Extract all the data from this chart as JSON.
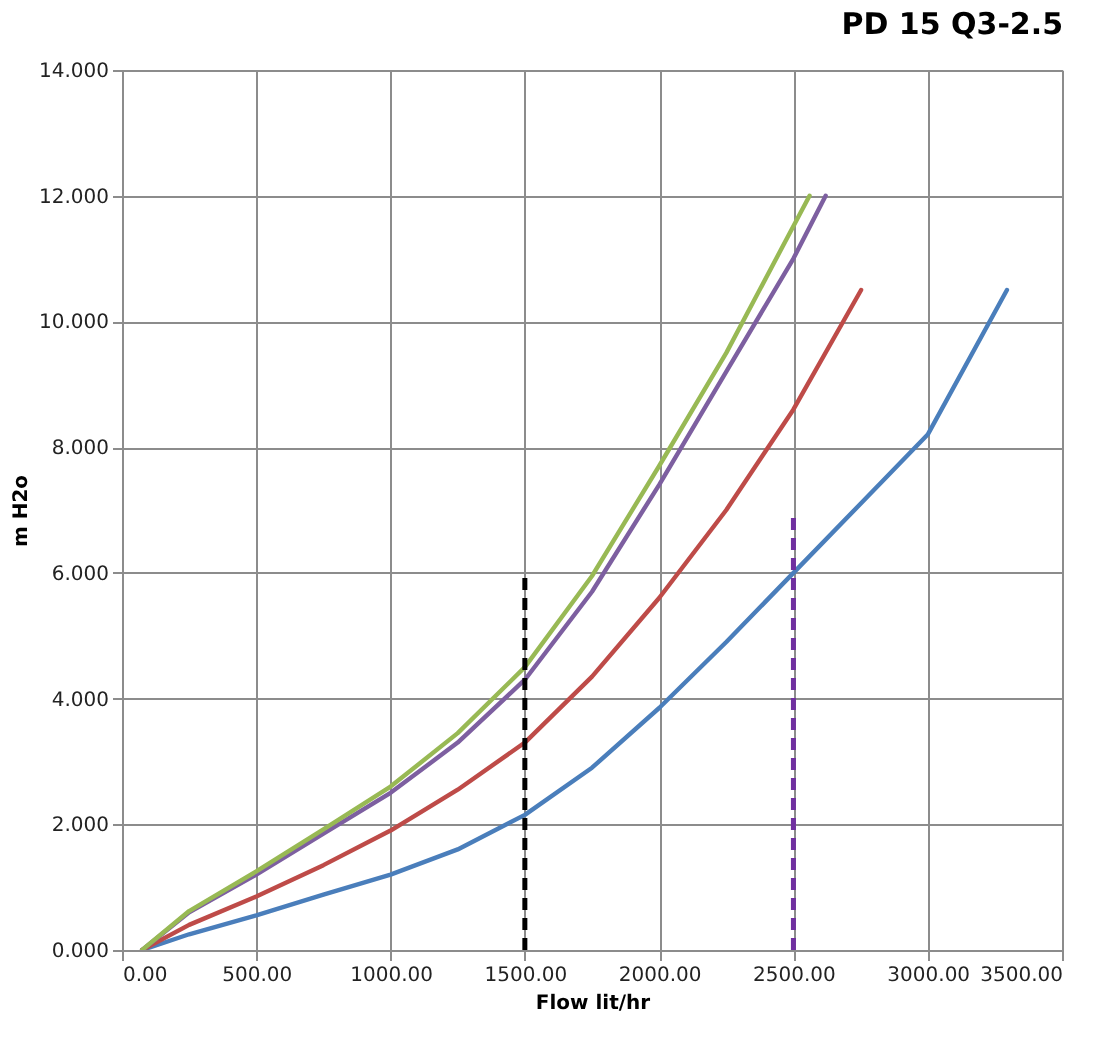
{
  "chart_data": {
    "type": "line",
    "title": "PD 15 Q3-2.5",
    "xlabel": "Flow lit/hr",
    "ylabel": "m H2o",
    "xlim": [
      0,
      3500
    ],
    "ylim": [
      0,
      14
    ],
    "xticks": [
      {
        "value": 0,
        "label": "0.00"
      },
      {
        "value": 500,
        "label": "500.00"
      },
      {
        "value": 1000,
        "label": "1000.00"
      },
      {
        "value": 1500,
        "label": "1500.00"
      },
      {
        "value": 2000,
        "label": "2000.00"
      },
      {
        "value": 2500,
        "label": "2500.00"
      },
      {
        "value": 3000,
        "label": "3000.00"
      },
      {
        "value": 3500,
        "label": "3500.00"
      }
    ],
    "yticks": [
      {
        "value": 0,
        "label": "0.000"
      },
      {
        "value": 2,
        "label": "2.000"
      },
      {
        "value": 4,
        "label": "4.000"
      },
      {
        "value": 6,
        "label": "6.000"
      },
      {
        "value": 8,
        "label": "8.000"
      },
      {
        "value": 10,
        "label": "10.000"
      },
      {
        "value": 12,
        "label": "12.000"
      },
      {
        "value": 14,
        "label": "14.000"
      }
    ],
    "grid": true,
    "marker": "none",
    "series": [
      {
        "color": "#4a7ebb",
        "x": [
          75,
          250,
          500,
          750,
          1000,
          1250,
          1500,
          1750,
          2000,
          2250,
          2500,
          2750,
          3000,
          3295
        ],
        "values": [
          0,
          0.25,
          0.55,
          0.88,
          1.2,
          1.6,
          2.15,
          2.9,
          3.85,
          4.9,
          6.0,
          7.1,
          8.2,
          10.5
        ]
      },
      {
        "color": "#be4b48",
        "x": [
          75,
          250,
          500,
          750,
          1000,
          1250,
          1500,
          1750,
          2000,
          2250,
          2500,
          2752
        ],
        "values": [
          0,
          0.4,
          0.85,
          1.35,
          1.9,
          2.55,
          3.3,
          4.35,
          5.6,
          7.0,
          8.6,
          10.5
        ]
      },
      {
        "color": "#7d5fa0",
        "x": [
          75,
          250,
          500,
          750,
          1000,
          1250,
          1500,
          1750,
          2000,
          2250,
          2500,
          2620
        ],
        "values": [
          0,
          0.6,
          1.2,
          1.85,
          2.5,
          3.3,
          4.3,
          5.7,
          7.4,
          9.2,
          11.0,
          12.0
        ]
      },
      {
        "color": "#98b954",
        "x": [
          75,
          250,
          500,
          750,
          1000,
          1250,
          1500,
          1750,
          2000,
          2250,
          2560
        ],
        "values": [
          0,
          0.62,
          1.25,
          1.92,
          2.6,
          3.45,
          4.5,
          5.95,
          7.7,
          9.5,
          12.0
        ]
      },
      {
        "color": "#000000",
        "line_style": "dashed",
        "x": [
          1500,
          1500
        ],
        "values": [
          0,
          6
        ]
      },
      {
        "color": "#7030a0",
        "line_style": "dashed",
        "x": [
          2500,
          2500
        ],
        "values": [
          0,
          7
        ]
      }
    ]
  }
}
